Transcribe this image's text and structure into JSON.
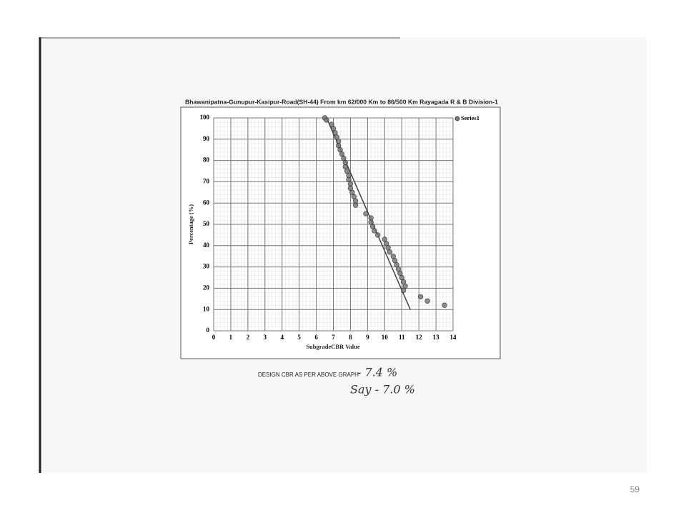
{
  "chart_data": {
    "type": "scatter",
    "title": "Bhawanipatna-Gunupur-Kasipur-Road(SH-44) From km 62/000 Km to 86/500 Km Rayagada R & B Division-1",
    "x_label": "SubgradeCBR Value",
    "y_label": "Percentage (%)",
    "xlim": [
      0,
      14
    ],
    "ylim": [
      0,
      100
    ],
    "xticks": [
      0,
      1,
      2,
      3,
      4,
      5,
      6,
      7,
      8,
      9,
      10,
      11,
      12,
      13,
      14
    ],
    "yticks": [
      0,
      10,
      20,
      30,
      40,
      50,
      60,
      70,
      80,
      90,
      100
    ],
    "grid": true,
    "legend": "upper right",
    "series": [
      {
        "name": "Series1",
        "color": "#7a7a7a",
        "x": [
          6.5,
          6.6,
          6.9,
          7.0,
          7.1,
          7.2,
          7.3,
          7.3,
          7.4,
          7.5,
          7.6,
          7.7,
          7.7,
          7.8,
          7.9,
          7.9,
          8.0,
          8.0,
          8.1,
          8.2,
          8.3,
          8.3,
          8.9,
          9.2,
          9.2,
          9.3,
          9.4,
          9.6,
          10.0,
          10.1,
          10.2,
          10.3,
          10.5,
          10.6,
          10.7,
          10.8,
          10.9,
          11.0,
          11.1,
          11.2,
          11.1,
          12.1,
          12.5,
          13.5
        ],
        "values": [
          100,
          99,
          97,
          95,
          93,
          91,
          89,
          87,
          85,
          83,
          81,
          79,
          77,
          75,
          73,
          71,
          69,
          67,
          65,
          63,
          61,
          59,
          55,
          53,
          51,
          49,
          47,
          45,
          43,
          41,
          39,
          37,
          35,
          33,
          31,
          29,
          27,
          25,
          23,
          21,
          19,
          16,
          14,
          12
        ]
      }
    ],
    "trendline": {
      "x": [
        6.6,
        11.5
      ],
      "values": [
        100,
        10
      ],
      "color": "#444444"
    }
  },
  "note": "DESIGN CBR AS PER ABOVE GRAPH",
  "handwriting": [
    "- 7.4 %",
    "Say - 7.0 %"
  ],
  "page_number": "59"
}
